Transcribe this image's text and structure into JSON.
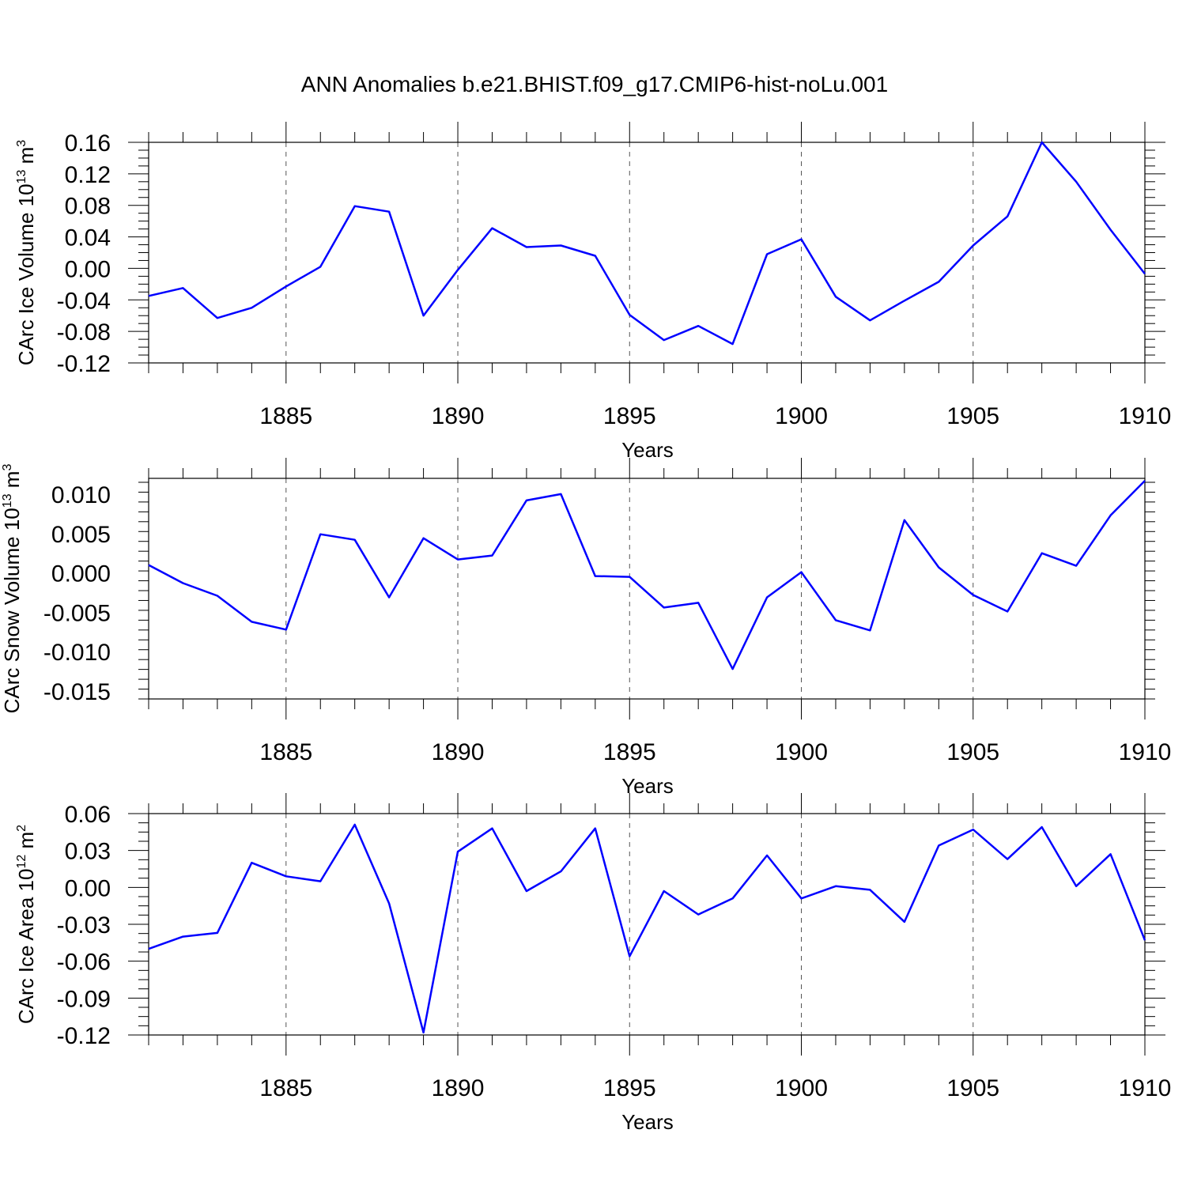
{
  "title": "ANN Anomalies b.e21.BHIST.f09_g17.CMIP6-hist-noLu.001",
  "line_color": "#0000ff",
  "chart_data": [
    {
      "type": "line",
      "title": "",
      "xlabel": "Years",
      "ylabel": "CArc Ice Volume 10",
      "ylabel_exp": "13",
      "ylabel_unit": " m",
      "ylabel_unit_exp": "3",
      "xlim": [
        1881,
        1910
      ],
      "ylim": [
        -0.12,
        0.16
      ],
      "x_ticks": [
        1885,
        1890,
        1895,
        1900,
        1905,
        1910
      ],
      "x_tick_labels": [
        "1885",
        "1890",
        "1895",
        "1900",
        "1905",
        "1910"
      ],
      "y_ticks": [
        -0.12,
        -0.08,
        -0.04,
        0.0,
        0.04,
        0.08,
        0.12,
        0.16
      ],
      "y_tick_labels": [
        "-0.12",
        "-0.08",
        "-0.04",
        "0.00",
        "0.04",
        "0.08",
        "0.12",
        "0.16"
      ],
      "grid": "vertical dashed at major x ticks",
      "x": [
        1881,
        1882,
        1883,
        1884,
        1885,
        1886,
        1887,
        1888,
        1889,
        1890,
        1891,
        1892,
        1893,
        1894,
        1895,
        1896,
        1897,
        1898,
        1899,
        1900,
        1901,
        1902,
        1903,
        1904,
        1905,
        1906,
        1907,
        1908,
        1909,
        1910
      ],
      "series": [
        {
          "values": [
            -0.035,
            -0.025,
            -0.063,
            -0.05,
            -0.023,
            0.002,
            0.079,
            0.072,
            -0.06,
            -0.002,
            0.051,
            0.027,
            0.029,
            0.016,
            -0.059,
            -0.091,
            -0.073,
            -0.096,
            0.018,
            0.037,
            -0.036,
            -0.066,
            -0.041,
            -0.017,
            0.029,
            0.066,
            0.16,
            0.11,
            0.049,
            -0.007
          ]
        }
      ]
    },
    {
      "type": "line",
      "title": "",
      "xlabel": "Years",
      "ylabel": "CArc Snow Volume 10",
      "ylabel_exp": "13",
      "ylabel_unit": " m",
      "ylabel_unit_exp": "3",
      "xlim": [
        1881,
        1910
      ],
      "ylim": [
        -0.016,
        0.012
      ],
      "x_ticks": [
        1885,
        1890,
        1895,
        1900,
        1905,
        1910
      ],
      "x_tick_labels": [
        "1885",
        "1890",
        "1895",
        "1900",
        "1905",
        "1910"
      ],
      "y_ticks": [
        -0.015,
        -0.01,
        -0.005,
        0.0,
        0.005,
        0.01
      ],
      "y_tick_labels": [
        "-0.015",
        "-0.010",
        "-0.005",
        "0.000",
        "0.005",
        "0.010"
      ],
      "grid": "vertical dashed at major x ticks",
      "x": [
        1881,
        1882,
        1883,
        1884,
        1885,
        1886,
        1887,
        1888,
        1889,
        1890,
        1891,
        1892,
        1893,
        1894,
        1895,
        1896,
        1897,
        1898,
        1899,
        1900,
        1901,
        1902,
        1903,
        1904,
        1905,
        1906,
        1907,
        1908,
        1909,
        1910
      ],
      "series": [
        {
          "values": [
            0.001,
            -0.0013,
            -0.0029,
            -0.0062,
            -0.0072,
            0.0049,
            0.0042,
            -0.0031,
            0.0044,
            0.0017,
            0.0022,
            0.0092,
            0.01,
            -0.0004,
            -0.0005,
            -0.0044,
            -0.0038,
            -0.0122,
            -0.0031,
            0.0001,
            -0.006,
            -0.0073,
            0.0067,
            0.0007,
            -0.0028,
            -0.0049,
            0.0025,
            0.0009,
            0.0073,
            0.0117
          ]
        }
      ]
    },
    {
      "type": "line",
      "title": "",
      "xlabel": "Years",
      "ylabel": "CArc Ice Area 10",
      "ylabel_exp": "12",
      "ylabel_unit": " m",
      "ylabel_unit_exp": "2",
      "xlim": [
        1881,
        1910
      ],
      "ylim": [
        -0.12,
        0.06
      ],
      "x_ticks": [
        1885,
        1890,
        1895,
        1900,
        1905,
        1910
      ],
      "x_tick_labels": [
        "1885",
        "1890",
        "1895",
        "1900",
        "1905",
        "1910"
      ],
      "y_ticks": [
        -0.12,
        -0.09,
        -0.06,
        -0.03,
        0.0,
        0.03,
        0.06
      ],
      "y_tick_labels": [
        "-0.12",
        "-0.09",
        "-0.06",
        "-0.03",
        "0.00",
        "0.03",
        "0.06"
      ],
      "grid": "vertical dashed at major x ticks",
      "x": [
        1881,
        1882,
        1883,
        1884,
        1885,
        1886,
        1887,
        1888,
        1889,
        1890,
        1891,
        1892,
        1893,
        1894,
        1895,
        1896,
        1897,
        1898,
        1899,
        1900,
        1901,
        1902,
        1903,
        1904,
        1905,
        1906,
        1907,
        1908,
        1909,
        1910
      ],
      "series": [
        {
          "values": [
            -0.05,
            -0.04,
            -0.037,
            0.02,
            0.009,
            0.005,
            0.051,
            -0.013,
            -0.118,
            0.029,
            0.048,
            -0.003,
            0.013,
            0.048,
            -0.056,
            -0.003,
            -0.022,
            -0.009,
            0.026,
            -0.009,
            0.001,
            -0.002,
            -0.028,
            0.034,
            0.047,
            0.023,
            0.049,
            0.001,
            0.027,
            -0.043
          ]
        }
      ]
    }
  ]
}
